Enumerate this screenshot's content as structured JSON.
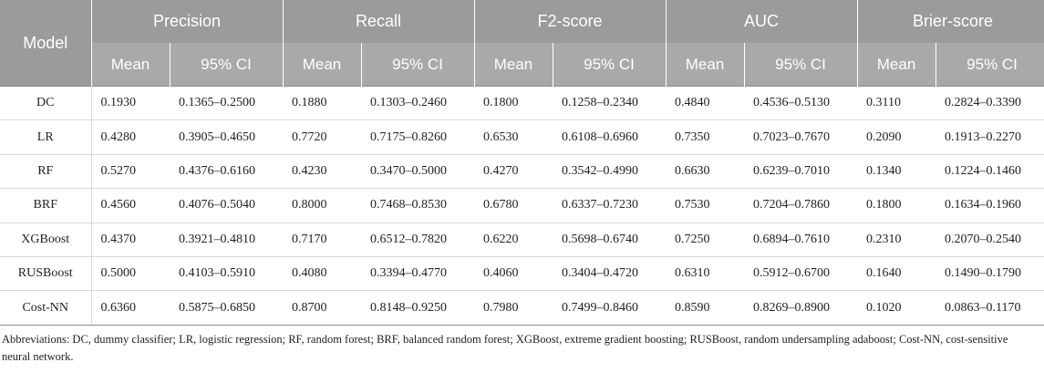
{
  "header": {
    "model": "Model",
    "groups": [
      "Precision",
      "Recall",
      "F2-score",
      "AUC",
      "Brier-score"
    ],
    "mean": "Mean",
    "ci": "95% CI"
  },
  "rows": [
    {
      "model": "DC",
      "cells": [
        "0.1930",
        "0.1365–0.2500",
        "0.1880",
        "0.1303–0.2460",
        "0.1800",
        "0.1258–0.2340",
        "0.4840",
        "0.4536–0.5130",
        "0.3110",
        "0.2824–0.3390"
      ]
    },
    {
      "model": "LR",
      "cells": [
        "0.4280",
        "0.3905–0.4650",
        "0.7720",
        "0.7175–0.8260",
        "0.6530",
        "0.6108–0.6960",
        "0.7350",
        "0.7023–0.7670",
        "0.2090",
        "0.1913–0.2270"
      ]
    },
    {
      "model": "RF",
      "cells": [
        "0.5270",
        "0.4376–0.6160",
        "0.4230",
        "0.3470–0.5000",
        "0.4270",
        "0.3542–0.4990",
        "0.6630",
        "0.6239–0.7010",
        "0.1340",
        "0.1224–0.1460"
      ]
    },
    {
      "model": "BRF",
      "cells": [
        "0.4560",
        "0.4076–0.5040",
        "0.8000",
        "0.7468–0.8530",
        "0.6780",
        "0.6337–0.7230",
        "0.7530",
        "0.7204–0.7860",
        "0.1800",
        "0.1634–0.1960"
      ]
    },
    {
      "model": "XGBoost",
      "cells": [
        "0.4370",
        "0.3921–0.4810",
        "0.7170",
        "0.6512–0.7820",
        "0.6220",
        "0.5698–0.6740",
        "0.7250",
        "0.6894–0.7610",
        "0.2310",
        "0.2070–0.2540"
      ]
    },
    {
      "model": "RUSBoost",
      "cells": [
        "0.5000",
        "0.4103–0.5910",
        "0.4080",
        "0.3394–0.4770",
        "0.4060",
        "0.3404–0.4720",
        "0.6310",
        "0.5912–0.6700",
        "0.1640",
        "0.1490–0.1790"
      ]
    },
    {
      "model": "Cost-NN",
      "cells": [
        "0.6360",
        "0.5875–0.6850",
        "0.8700",
        "0.8148–0.9250",
        "0.7980",
        "0.7499–0.8460",
        "0.8590",
        "0.8269–0.8900",
        "0.1020",
        "0.0863–0.1170"
      ]
    }
  ],
  "footnote": "Abbreviations: DC, dummy classifier; LR, logistic regression; RF, random forest; BRF, balanced random forest; XGBoost, extreme gradient boosting; RUSBoost, random undersampling adaboost; Cost-NN, cost-sensitive neural network."
}
